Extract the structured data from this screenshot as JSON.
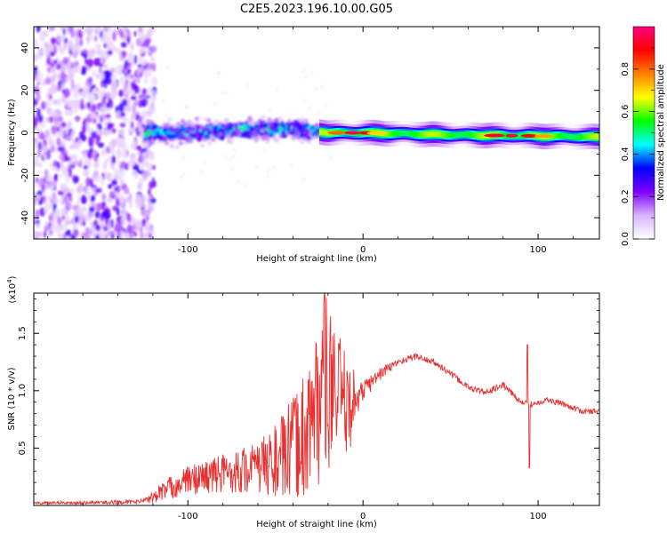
{
  "figure_title": "C2E5.2023.196.10.00.G05",
  "chart_data": [
    {
      "type": "heatmap",
      "xlabel": "Height of straight line (km)",
      "ylabel": "Frequency (Hz)",
      "xlim": [
        -188,
        135
      ],
      "ylim": [
        -50,
        50
      ],
      "x_ticks": [
        -100,
        0,
        100
      ],
      "y_ticks": [
        -40,
        -20,
        0,
        20,
        40
      ],
      "colorbar": {
        "label": "Normalized spectral amplitude",
        "range": [
          0,
          1
        ],
        "ticks": [
          0.0,
          0.2,
          0.4,
          0.6,
          0.8
        ],
        "colormap": [
          "#ffffff",
          "#d9b3ff",
          "#8000ff",
          "#0000ff",
          "#00ffff",
          "#00ff00",
          "#ffff00",
          "#ff8000",
          "#ff0000",
          "#ff0080"
        ]
      },
      "regions": [
        {
          "x_range": [
            -188,
            -125
          ],
          "f_range": [
            -50,
            50
          ],
          "amplitude": [
            0.05,
            0.3
          ]
        },
        {
          "x_range": [
            -125,
            -25
          ],
          "f_range": [
            -8,
            15
          ],
          "amplitude": [
            0.15,
            0.55
          ]
        },
        {
          "x_range": [
            -25,
            135
          ],
          "f_range": [
            -4,
            3
          ],
          "amplitude": [
            0.3,
            1.0
          ]
        }
      ],
      "ridge": [
        {
          "x": -125,
          "f": 0
        },
        {
          "x": -100,
          "f": 0
        },
        {
          "x": -75,
          "f": 1
        },
        {
          "x": -50,
          "f": 2
        },
        {
          "x": -30,
          "f": 1
        },
        {
          "x": -20,
          "f": 0
        },
        {
          "x": 0,
          "f": 0
        },
        {
          "x": 50,
          "f": -1
        },
        {
          "x": 100,
          "f": -1.5
        },
        {
          "x": 135,
          "f": -2
        }
      ]
    },
    {
      "type": "line",
      "xlabel": "Height of straight line (km)",
      "ylabel": "SNR (10 * v/v)",
      "y_multiplier": "(x10",
      "y_multiplier_exp": "4",
      "y_multiplier_close": ")",
      "xlim": [
        -188,
        135
      ],
      "ylim": [
        0,
        1.85
      ],
      "x_ticks": [
        -100,
        0,
        100
      ],
      "y_ticks": [
        0.5,
        1.0,
        1.5
      ],
      "color": "#e83030",
      "envelope": [
        {
          "x": -188,
          "y": 0.02
        },
        {
          "x": -130,
          "y": 0.03
        },
        {
          "x": -122,
          "y": 0.05
        },
        {
          "x": -115,
          "y": 0.12
        },
        {
          "x": -100,
          "y": 0.22
        },
        {
          "x": -80,
          "y": 0.28
        },
        {
          "x": -60,
          "y": 0.33
        },
        {
          "x": -45,
          "y": 0.42
        },
        {
          "x": -35,
          "y": 0.58
        },
        {
          "x": -28,
          "y": 0.8
        },
        {
          "x": -22,
          "y": 1.05
        },
        {
          "x": -15,
          "y": 0.95
        },
        {
          "x": -8,
          "y": 0.85
        },
        {
          "x": 0,
          "y": 1.0
        },
        {
          "x": 10,
          "y": 1.15
        },
        {
          "x": 20,
          "y": 1.25
        },
        {
          "x": 30,
          "y": 1.3
        },
        {
          "x": 40,
          "y": 1.25
        },
        {
          "x": 50,
          "y": 1.15
        },
        {
          "x": 60,
          "y": 1.03
        },
        {
          "x": 70,
          "y": 0.98
        },
        {
          "x": 80,
          "y": 1.05
        },
        {
          "x": 85,
          "y": 0.98
        },
        {
          "x": 90,
          "y": 0.9
        },
        {
          "x": 95,
          "y": 0.88
        },
        {
          "x": 105,
          "y": 0.92
        },
        {
          "x": 115,
          "y": 0.88
        },
        {
          "x": 125,
          "y": 0.82
        },
        {
          "x": 135,
          "y": 0.82
        }
      ],
      "noise_amplitude": [
        {
          "x": -188,
          "a": 0.01
        },
        {
          "x": -125,
          "a": 0.02
        },
        {
          "x": -115,
          "a": 0.1
        },
        {
          "x": -60,
          "a": 0.25
        },
        {
          "x": -40,
          "a": 0.5
        },
        {
          "x": -22,
          "a": 0.9
        },
        {
          "x": -10,
          "a": 0.5
        },
        {
          "x": 0,
          "a": 0.15
        },
        {
          "x": 20,
          "a": 0.05
        },
        {
          "x": 135,
          "a": 0.04
        }
      ],
      "features": [
        {
          "x": -22,
          "y": 1.85
        },
        {
          "x": 94,
          "y": 1.4
        },
        {
          "x": 95,
          "y": 0.33
        }
      ]
    }
  ]
}
